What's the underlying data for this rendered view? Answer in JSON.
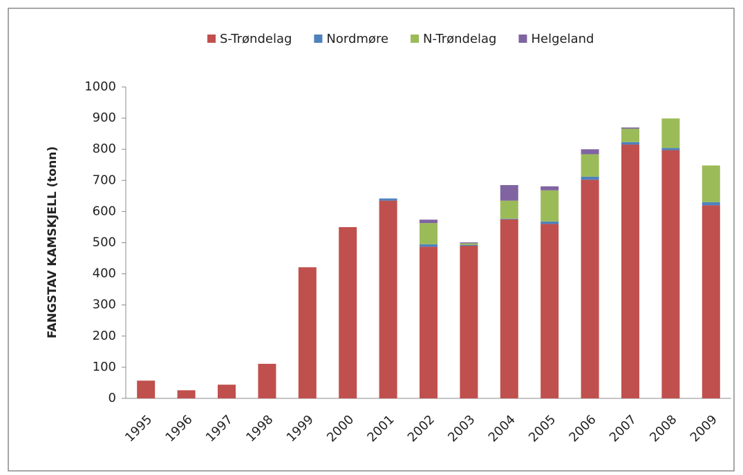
{
  "chart_data": {
    "type": "stacked-bar",
    "ylabel": "FANGSTAV KAMSKJELL (tonn)",
    "categories": [
      "1995",
      "1996",
      "1997",
      "1998",
      "1999",
      "2000",
      "2001",
      "2002",
      "2003",
      "2004",
      "2005",
      "2006",
      "2007",
      "2008",
      "2009"
    ],
    "series": [
      {
        "name": "S-Trøndelag",
        "color": "#c0504d",
        "values": [
          57,
          26,
          44,
          111,
          421,
          550,
          635,
          487,
          490,
          575,
          560,
          702,
          815,
          797,
          620
        ]
      },
      {
        "name": "Nordmøre",
        "color": "#4f81bd",
        "values": [
          0,
          0,
          0,
          0,
          0,
          0,
          7,
          8,
          3,
          2,
          8,
          10,
          8,
          7,
          10
        ]
      },
      {
        "name": "N-Trøndelag",
        "color": "#9bbb59",
        "values": [
          0,
          0,
          0,
          0,
          0,
          0,
          0,
          68,
          5,
          58,
          100,
          72,
          43,
          95,
          118
        ]
      },
      {
        "name": "Helgeland",
        "color": "#8064a2",
        "values": [
          0,
          0,
          0,
          0,
          0,
          0,
          0,
          11,
          3,
          50,
          13,
          16,
          4,
          0,
          0
        ]
      }
    ],
    "ylim": [
      0,
      1000
    ],
    "yticks": [
      0,
      100,
      200,
      300,
      400,
      500,
      600,
      700,
      800,
      900,
      1000
    ],
    "grid": false,
    "legend": "top"
  }
}
